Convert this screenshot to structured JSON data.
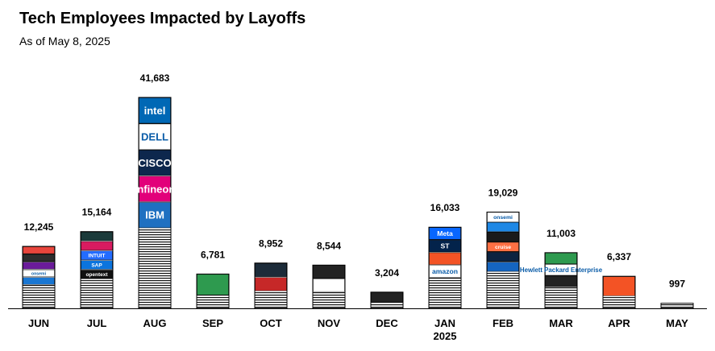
{
  "title": "Tech Employees Impacted by Layoffs",
  "subtitle": "As of May 8, 2025",
  "chart_data": {
    "type": "bar",
    "categories": [
      "JUN",
      "JUL",
      "AUG",
      "SEP",
      "OCT",
      "NOV",
      "DEC",
      "JAN\n2025",
      "FEB",
      "MAR",
      "APR",
      "MAY"
    ],
    "values": [
      12245,
      15164,
      41683,
      6781,
      8952,
      8544,
      3204,
      16033,
      19029,
      11003,
      6337,
      997
    ],
    "value_labels": [
      "12,245",
      "15,164",
      "41,683",
      "6,781",
      "8,952",
      "8,544",
      "3,204",
      "16,033",
      "19,029",
      "11,003",
      "6,337",
      "997"
    ],
    "ylim": [
      0,
      41683
    ],
    "grid": false,
    "legend": "none",
    "logo_stripes": [
      [
        {
          "text": "",
          "color": "#e8453c"
        },
        {
          "text": "",
          "color": "#2d2d2d"
        },
        {
          "text": "",
          "color": "#6a1b9a"
        },
        {
          "text": "onsemi",
          "color": "#ffffff"
        },
        {
          "text": "",
          "color": "#1976d2"
        }
      ],
      [
        {
          "text": "",
          "color": "#1b3a3a"
        },
        {
          "text": "",
          "color": "#d81b60"
        },
        {
          "text": "INTUIT",
          "color": "#236cff"
        },
        {
          "text": "SAP",
          "color": "#0b74de"
        },
        {
          "text": "opentext",
          "color": "#111111"
        }
      ],
      [
        {
          "text": "intel",
          "color": "#0068b5"
        },
        {
          "text": "DELL",
          "color": "#ffffff"
        },
        {
          "text": "CISCO",
          "color": "#0d274d"
        },
        {
          "text": "infineon",
          "color": "#e2007a"
        },
        {
          "text": "IBM",
          "color": "#1f70c1"
        }
      ],
      [
        {
          "text": "",
          "color": "#2e9a4f"
        }
      ],
      [
        {
          "text": "",
          "color": "#1c2b39"
        },
        {
          "text": "",
          "color": "#c62828"
        }
      ],
      [
        {
          "text": "",
          "color": "#222222"
        },
        {
          "text": "",
          "color": "#ffffff"
        }
      ],
      [
        {
          "text": "",
          "color": "#222222"
        }
      ],
      [
        {
          "text": "Meta",
          "color": "#0866ff"
        },
        {
          "text": "ST",
          "color": "#03234b"
        },
        {
          "text": "",
          "color": "#f35325"
        },
        {
          "text": "amazon",
          "color": "#ffffff"
        }
      ],
      [
        {
          "text": "onsemi",
          "color": "#ffffff"
        },
        {
          "text": "",
          "color": "#1e88e5"
        },
        {
          "text": "",
          "color": "#1a1a1a"
        },
        {
          "text": "cruise",
          "color": "#ff7043"
        },
        {
          "text": "",
          "color": "#0c2340"
        },
        {
          "text": "",
          "color": "#1565c0"
        }
      ],
      [
        {
          "text": "",
          "color": "#2e9a4f"
        },
        {
          "text": "Hewlett Packard Enterprise",
          "color": "#ffffff"
        },
        {
          "text": "",
          "color": "#222222"
        }
      ],
      [
        {
          "text": "",
          "color": "#f35325"
        }
      ],
      []
    ]
  }
}
